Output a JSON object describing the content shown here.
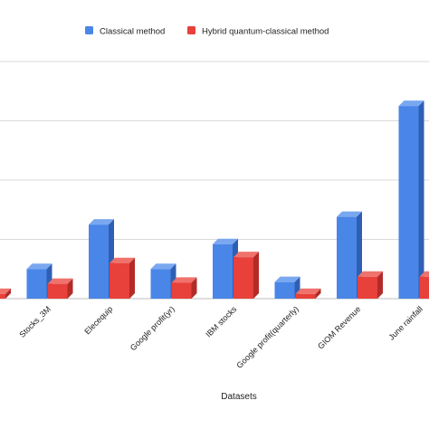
{
  "chart_data": {
    "type": "bar",
    "style": "3d-clustered",
    "categories": [
      "",
      "Stocks_3M",
      "Elecequip",
      "Google profit(yr)",
      "IBM stocks",
      "Google profit(quarterly)",
      "GIOM Revenue",
      "June rainfall"
    ],
    "series": [
      {
        "name": "Classical method",
        "values": [
          0,
          0.5,
          1.25,
          0.5,
          0.92,
          0.28,
          1.38,
          3.25
        ]
      },
      {
        "name": "Hybrid quantum-classical method",
        "values": [
          0.08,
          0.25,
          0.6,
          0.27,
          0.7,
          0.08,
          0.37,
          0.37
        ]
      }
    ],
    "xlabel": "Datasets",
    "ylabel": "",
    "ylim": [
      0,
      4
    ],
    "grid": true,
    "legend": "top-center",
    "colors": {
      "series_0": "#4a86e8",
      "series_1": "#e8403a",
      "grid": "#d9d9d9"
    }
  }
}
